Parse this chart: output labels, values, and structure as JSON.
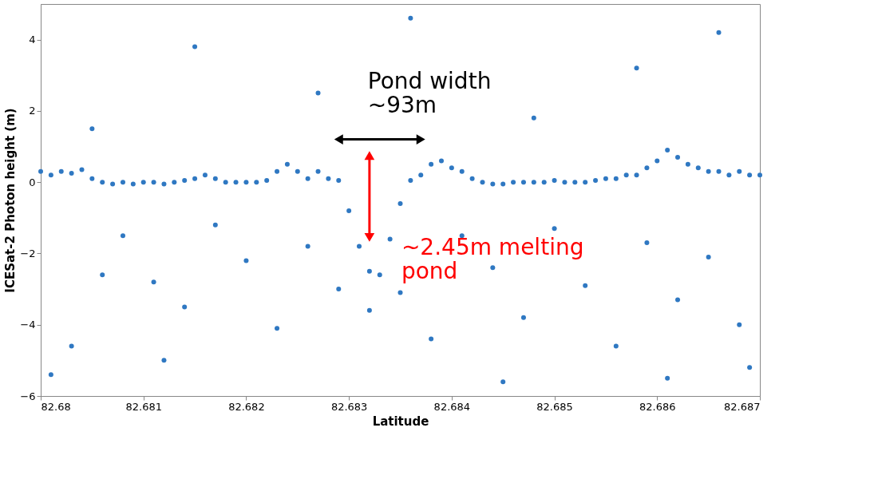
{
  "chart_data": {
    "type": "scatter",
    "xlabel": "Latitude",
    "ylabel": "ICESat-2 Photon height (m)",
    "xlim": [
      82.68,
      82.687
    ],
    "xticks": [
      82.68,
      82.681,
      82.682,
      82.683,
      82.684,
      82.685,
      82.686,
      82.687
    ],
    "ylim": [
      -6,
      5
    ],
    "yticks": [
      -6,
      -4,
      -2,
      0,
      2,
      4
    ],
    "grid": false,
    "marker": "circle",
    "series": [
      {
        "type": "scatter",
        "color": "#2f78c2",
        "x": [
          82.68,
          82.6801,
          82.6802,
          82.6803,
          82.6804,
          82.6805,
          82.6806,
          82.6807,
          82.6808,
          82.6809,
          82.681,
          82.6811,
          82.6812,
          82.6813,
          82.6814,
          82.6815,
          82.6816,
          82.6817,
          82.6818,
          82.6819,
          82.682,
          82.6821,
          82.6822,
          82.6823,
          82.6824,
          82.6825,
          82.6826,
          82.6827,
          82.6828,
          82.6829,
          82.683,
          82.6831,
          82.6832,
          82.6833,
          82.6834,
          82.6835,
          82.6836,
          82.6837,
          82.6838,
          82.6839,
          82.684,
          82.6841,
          82.6842,
          82.6843,
          82.6844,
          82.6845,
          82.6846,
          82.6847,
          82.6848,
          82.6849,
          82.685,
          82.6851,
          82.6852,
          82.6853,
          82.6854,
          82.6855,
          82.6856,
          82.6857,
          82.6858,
          82.6859,
          82.686,
          82.6861,
          82.6862,
          82.6863,
          82.6864,
          82.6865,
          82.6866,
          82.6867,
          82.6868,
          82.6869,
          82.687,
          82.6808,
          82.6811,
          82.6814,
          82.6817,
          82.682,
          82.6823,
          82.6826,
          82.6829,
          82.6803,
          82.6806,
          82.6832,
          82.6835,
          82.6838,
          82.6841,
          82.6844,
          82.6847,
          82.685,
          82.6853,
          82.6856,
          82.6859,
          82.6862,
          82.6865,
          82.6868,
          82.6801,
          82.6845,
          82.6815,
          82.6836,
          82.6848,
          82.6858,
          82.6866,
          82.6805,
          82.6827,
          82.6869,
          82.6812,
          82.6861
        ],
        "values": [
          0.3,
          0.2,
          0.3,
          0.25,
          0.35,
          0.1,
          0.0,
          -0.05,
          0.0,
          -0.05,
          0.0,
          0.0,
          -0.05,
          0.0,
          0.05,
          0.1,
          0.2,
          0.1,
          0.0,
          0.0,
          0.0,
          0.0,
          0.05,
          0.3,
          0.5,
          0.3,
          0.1,
          0.3,
          0.1,
          0.05,
          -0.8,
          -1.8,
          -2.5,
          -2.6,
          -1.6,
          -0.6,
          0.05,
          0.2,
          0.5,
          0.6,
          0.4,
          0.3,
          0.1,
          0.0,
          -0.05,
          -0.05,
          0.0,
          0.0,
          0.0,
          0.0,
          0.05,
          0.0,
          0.0,
          0.0,
          0.05,
          0.1,
          0.1,
          0.2,
          0.2,
          0.4,
          0.6,
          0.9,
          0.7,
          0.5,
          0.4,
          0.3,
          0.3,
          0.2,
          0.3,
          0.2,
          0.2,
          -1.5,
          -2.8,
          -3.5,
          -1.2,
          -2.2,
          -4.1,
          -1.8,
          -3.0,
          -4.6,
          -2.6,
          -3.6,
          -3.1,
          -4.4,
          -1.5,
          -2.4,
          -3.8,
          -1.3,
          -2.9,
          -4.6,
          -1.7,
          -3.3,
          -2.1,
          -4.0,
          -5.4,
          -5.6,
          3.8,
          4.6,
          1.8,
          3.2,
          4.2,
          1.5,
          2.5,
          -5.2,
          -5.0,
          -5.5
        ]
      },
      {
        "type": "line",
        "color": "#000000",
        "marker": "triangle",
        "x": [
          82.6829,
          82.6837
        ],
        "values": [
          1.2,
          1.2
        ]
      },
      {
        "type": "line",
        "color": "#ff0000",
        "marker": "triangle",
        "x": [
          82.6832,
          82.6832
        ],
        "values": [
          0.75,
          -1.55
        ]
      }
    ],
    "annotations": [
      "Pond width\n~93m",
      "~2.45m melting\npond"
    ]
  }
}
